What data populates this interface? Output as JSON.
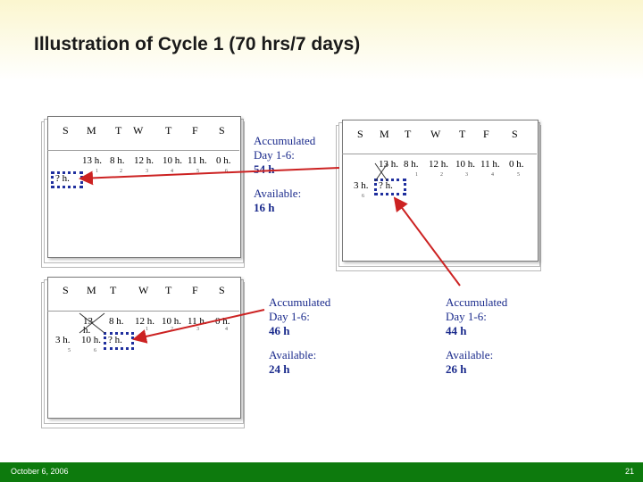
{
  "title": "Illustration of Cycle 1 (70 hrs/7 days)",
  "footer": {
    "date": "October 6, 2006",
    "page": "21"
  },
  "colors": {
    "footer_green": "#0d7a0d",
    "note_blue": "#1a2a8c",
    "dotted_box": "#1f2f9e",
    "arrow_red": "#cc2222"
  },
  "calendar1": {
    "days": [
      "S",
      "M",
      "T",
      "W",
      "T",
      "F",
      "S"
    ],
    "hours": [
      "13 h.",
      "8 h.",
      "12 h.",
      "10 h.",
      "11 h.",
      "0 h."
    ],
    "nums": [
      "1",
      "2",
      "3",
      "4",
      "5",
      "6"
    ],
    "unknown": "? h."
  },
  "calendar2": {
    "days": [
      "S",
      "M",
      "T",
      "W",
      "T",
      "F",
      "S"
    ],
    "hours": [
      "13 h.",
      "8 h.",
      "12 h.",
      "10 h.",
      "11 h.",
      "0 h."
    ],
    "nums": [
      "1",
      "2",
      "3",
      "4",
      "5",
      "6"
    ],
    "first": "3 h.",
    "first_num": "6",
    "unknown": "? h."
  },
  "calendar3": {
    "days": [
      "S",
      "M",
      "T",
      "W",
      "T",
      "F",
      "S"
    ],
    "top": [
      "13",
      "8 h.",
      "12 h.",
      "10 h.",
      "11 h.",
      "0 h."
    ],
    "top_nums": [
      "1",
      "2",
      "3",
      "4"
    ],
    "wrap": "h.",
    "first": "3 h.",
    "first_num": "5",
    "second": "10 h.",
    "second_num": "6",
    "unknown": "? h."
  },
  "notes": {
    "n1": {
      "acc_label": "Accumulated Day 1-6:",
      "acc_line1": "Accumulated",
      "acc_line2": "Day 1-6:",
      "acc_value": "54 h",
      "avail_label": "Available:",
      "avail_value": "16 h"
    },
    "n2": {
      "acc_line1": "Accumulated",
      "acc_line2": "Day 1-6:",
      "acc_value": "46 h",
      "avail_label": "Available:",
      "avail_value": "24 h"
    },
    "n3": {
      "acc_line1": "Accumulated",
      "acc_line2": "Day 1-6:",
      "acc_value": "44 h",
      "avail_label": "Available:",
      "avail_value": "26 h"
    }
  }
}
